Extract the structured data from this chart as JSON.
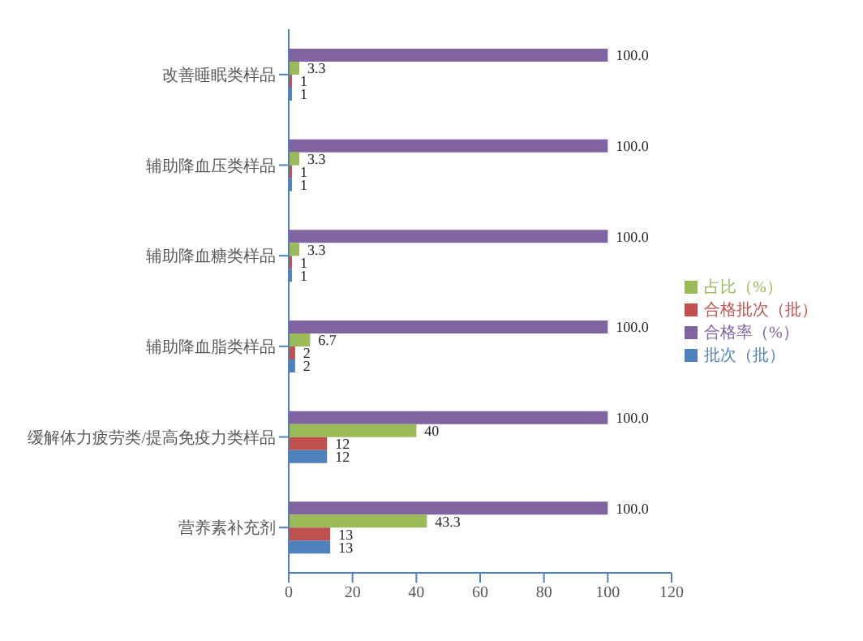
{
  "chart_data": {
    "type": "bar",
    "orientation": "horizontal",
    "categories": [
      "改善睡眠类样品",
      "辅助降血压类样品",
      "辅助降血糖类样品",
      "辅助降血脂类样品",
      "缓解体力疲劳类/提高免疫力类样品",
      "营养素补充剂"
    ],
    "series": [
      {
        "name": "合格率（%）",
        "color": "#8064a2",
        "values": [
          100,
          100,
          100,
          100,
          100,
          100
        ],
        "value_labels": [
          "100.0",
          "100.0",
          "100.0",
          "100.0",
          "100.0",
          "100.0"
        ]
      },
      {
        "name": "占比（%）",
        "color": "#9bbb59",
        "values": [
          3.3,
          3.3,
          3.3,
          6.7,
          40,
          43.3
        ],
        "value_labels": [
          "3.3",
          "3.3",
          "3.3",
          "6.7",
          "40",
          "43.3"
        ]
      },
      {
        "name": "合格批次（批）",
        "color": "#c0504d",
        "values": [
          1,
          1,
          1,
          2,
          12,
          13
        ],
        "value_labels": [
          "1",
          "1",
          "1",
          "2",
          "12",
          "13"
        ]
      },
      {
        "name": "批次（批）",
        "color": "#4f81bd",
        "values": [
          1,
          1,
          1,
          2,
          12,
          13
        ],
        "value_labels": [
          "1",
          "1",
          "1",
          "2",
          "12",
          "13"
        ]
      }
    ],
    "xlim": [
      0,
      120
    ],
    "xticks": [
      0,
      20,
      40,
      60,
      80,
      100,
      120
    ],
    "grid": false,
    "legend": "right"
  }
}
